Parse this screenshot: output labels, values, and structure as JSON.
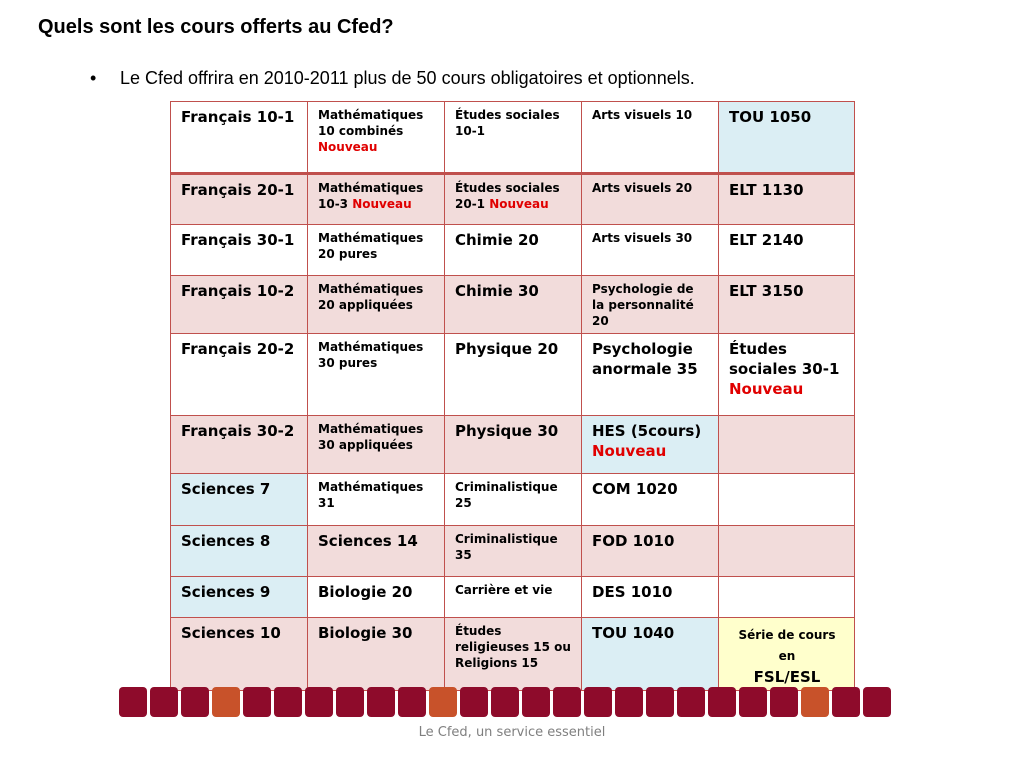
{
  "title": "Quels sont les cours offerts au Cfed?",
  "bullet": {
    "symbol": "•",
    "text": "Le Cfed offrira en 2010-2011  plus de 50 cours obligatoires et optionnels."
  },
  "nouveau": "Nouveau",
  "table": {
    "r1": {
      "c1": "Français 10-1",
      "c2": "Mathématiques 10  combinés",
      "c3": "Études sociales 10-1",
      "c4": "Arts visuels 10",
      "c5": "TOU 1050"
    },
    "r2": {
      "c1": "Français 20-1",
      "c2": "Mathématiques 10-3",
      "c3": "Études sociales 20-1",
      "c4": "Arts visuels 20",
      "c5": "ELT 1130"
    },
    "r3": {
      "c1": "Français 30-1",
      "c2": "Mathématiques 20 pures",
      "c3": "Chimie 20",
      "c4": "Arts visuels 30",
      "c5": "ELT 2140"
    },
    "r4": {
      "c1": "Français 10-2",
      "c2": "Mathématiques 20 appliquées",
      "c3": "Chimie 30",
      "c4": "Psychologie de la personnalité 20",
      "c5": "ELT 3150"
    },
    "r5": {
      "c1": "Français 20-2",
      "c2": "Mathématiques 30 pures",
      "c3": "Physique 20",
      "c4": "Psychologie anormale 35",
      "c5": "Études sociales 30-1"
    },
    "r6": {
      "c1": "Français 30-2",
      "c2": "Mathématiques 30 appliquées",
      "c3": "Physique 30",
      "c4": "HES (5cours)",
      "c5": ""
    },
    "r7": {
      "c1": "Sciences 7",
      "c2": "Mathématiques 31",
      "c3": "Criminalistique 25",
      "c4": "COM 1020",
      "c5": ""
    },
    "r8": {
      "c1": "Sciences 8",
      "c2": "Sciences 14",
      "c3": "Criminalistique 35",
      "c4": "FOD 1010",
      "c5": ""
    },
    "r9": {
      "c1": "Sciences 9",
      "c2": "Biologie 20",
      "c3": "Carrière et vie",
      "c4": "DES 1010",
      "c5": ""
    },
    "r10": {
      "c1": "Sciences 10",
      "c2": "Biologie 30",
      "c3": "Études religieuses 15 ou Religions 15",
      "c4": "TOU 1040",
      "c5a": "Série de cours en",
      "c5b": "FSL/ESL"
    }
  },
  "colors": {
    "border": "#c0504d",
    "blue": "#dbeef4",
    "pink": "#f2dcdb",
    "yellow": "#ffffcc",
    "nouveau": "#e00000",
    "strip_red": "#8e0b2b",
    "strip_orange": "#c8522a"
  },
  "strip": [
    "red",
    "red",
    "red",
    "orange",
    "red",
    "red",
    "red",
    "red",
    "red",
    "red",
    "orange",
    "red",
    "red",
    "red",
    "red",
    "red",
    "red",
    "red",
    "red",
    "red",
    "red",
    "red",
    "orange",
    "red",
    "red"
  ],
  "footer": "Le Cfed, un service essentiel"
}
